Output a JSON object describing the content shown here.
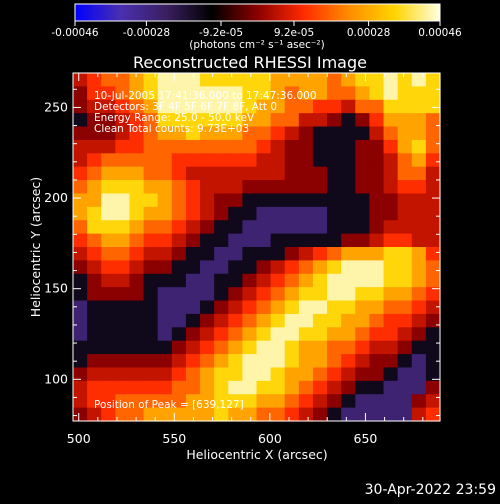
{
  "chart_data": {
    "type": "heatmap",
    "title": "Reconstructed RHESSI Image",
    "xlabel": "Heliocentric X (arcsec)",
    "ylabel": "Heliocentric Y (arcsec)",
    "xlim": [
      497,
      689
    ],
    "ylim": [
      77,
      269
    ],
    "x_ticks": [
      500,
      550,
      600,
      650
    ],
    "y_ticks": [
      100,
      150,
      200,
      250
    ],
    "colorbar": {
      "range": [
        -0.00046,
        0.00046
      ],
      "tick_values": [
        -0.00046,
        -0.00028,
        -9.2e-05,
        9.2e-05,
        0.00028,
        0.00046
      ],
      "tick_labels": [
        "-0.00046",
        "-0.00028",
        "-9.2e-05",
        "9.2e-05",
        "0.00028",
        "0.00046"
      ],
      "unit_label": "(photons cm⁻² s⁻¹ asec⁻²)",
      "colormap": [
        "#0000ff",
        "#4a2fb0",
        "#3a1f60",
        "#000000",
        "#8b0000",
        "#ff2a00",
        "#ff8c00",
        "#ffd400",
        "#ffffe0"
      ]
    },
    "annotations": [
      "10-Jul-2005 17:41:36.000 to 17:47:36.000",
      "Detectors: 3F 4F 5F 6F 7F 8F, Att 0",
      "Energy Range: 25.0 - 50.0 keV",
      "Clean     Total counts: 9.73E+03"
    ],
    "peak_label": "Position of Peak = [639,127]",
    "peak_position": [
      639,
      127
    ],
    "map_intensity_rows_top_to_bottom": [
      "45667899988888777767889898",
      "35567899999988767766789888",
      "34456799999987766554668888",
      "23345688888877664432357776",
      "33345677877766543222246776",
      "44455666666665433222335786",
      "45666665555554433222334675",
      "56777665444444433322334664",
      "67888776544433333322334554",
      "77998876543322222222233444",
      "78998776543221111122233444",
      "68887665432211111122234444",
      "56776554322111222223345544",
      "45665443221122234567778875",
      "34554332211223456789998876",
      "23443222112234567899998876",
      "23333211112345678899887765",
      "12222211123456789988776654",
      "12222211234567899887765543",
      "12222212345678998877655432",
      "22222223456789987766544322",
      "23333334567899987765433212",
      "34444445678899877654332112",
      "45555556678998876543221113",
      "45566666778887765432111134",
      "34566777778776654321111145"
    ]
  },
  "footer": {
    "timestamp": "30-Apr-2022 23:59"
  }
}
